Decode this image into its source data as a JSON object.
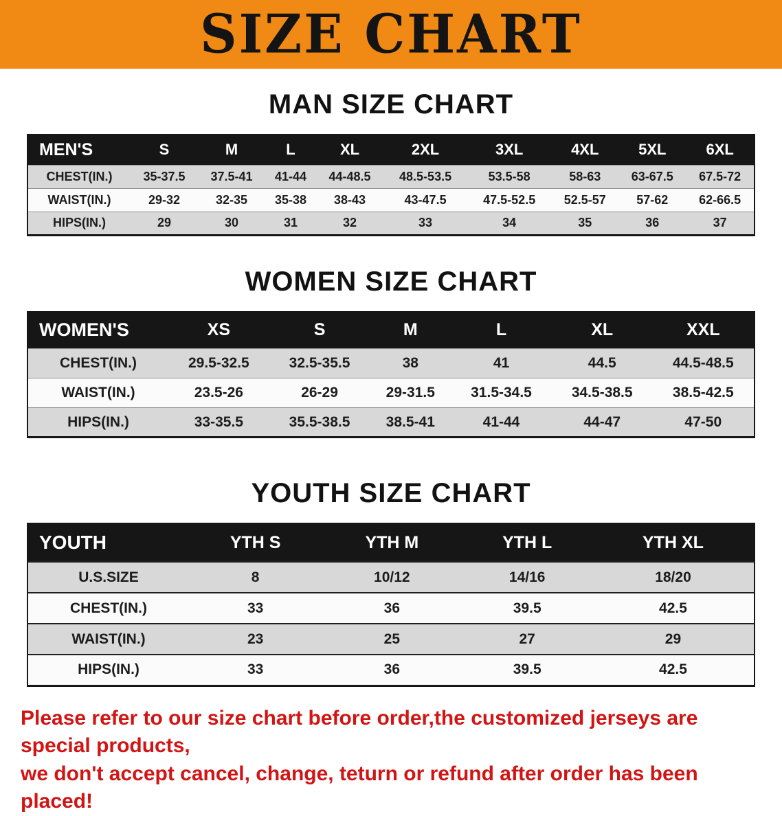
{
  "colors": {
    "banner_bg": "#f18a15",
    "table_header_bg": "#161616",
    "row_stripe": "#d8d8d8",
    "accent_red": "#d11515"
  },
  "banner": {
    "title": "SIZE CHART"
  },
  "sections": [
    {
      "heading": "MAN SIZE CHART",
      "table": {
        "header": [
          "MEN'S",
          "S",
          "M",
          "L",
          "XL",
          "2XL",
          "3XL",
          "4XL",
          "5XL",
          "6XL"
        ],
        "rows": [
          [
            "CHEST(IN.)",
            "35-37.5",
            "37.5-41",
            "41-44",
            "44-48.5",
            "48.5-53.5",
            "53.5-58",
            "58-63",
            "63-67.5",
            "67.5-72"
          ],
          [
            "WAIST(IN.)",
            "29-32",
            "32-35",
            "35-38",
            "38-43",
            "43-47.5",
            "47.5-52.5",
            "52.5-57",
            "57-62",
            "62-66.5"
          ],
          [
            "HIPS(IN.)",
            "29",
            "30",
            "31",
            "32",
            "33",
            "34",
            "35",
            "36",
            "37"
          ]
        ]
      }
    },
    {
      "heading": "WOMEN SIZE CHART",
      "table": {
        "header": [
          "WOMEN'S",
          "XS",
          "S",
          "M",
          "L",
          "XL",
          "XXL"
        ],
        "rows": [
          [
            "CHEST(IN.)",
            "29.5-32.5",
            "32.5-35.5",
            "38",
            "41",
            "44.5",
            "44.5-48.5"
          ],
          [
            "WAIST(IN.)",
            "23.5-26",
            "26-29",
            "29-31.5",
            "31.5-34.5",
            "34.5-38.5",
            "38.5-42.5"
          ],
          [
            "HIPS(IN.)",
            "33-35.5",
            "35.5-38.5",
            "38.5-41",
            "41-44",
            "44-47",
            "47-50"
          ]
        ]
      }
    },
    {
      "heading": "YOUTH SIZE CHART",
      "table": {
        "header": [
          "YOUTH",
          "YTH S",
          "YTH M",
          "YTH L",
          "YTH XL"
        ],
        "rows": [
          [
            "U.S.SIZE",
            "8",
            "10/12",
            "14/16",
            "18/20"
          ],
          [
            "CHEST(IN.)",
            "33",
            "36",
            "39.5",
            "42.5"
          ],
          [
            "WAIST(IN.)",
            "23",
            "25",
            "27",
            "29"
          ],
          [
            "HIPS(IN.)",
            "33",
            "36",
            "39.5",
            "42.5"
          ]
        ]
      }
    }
  ],
  "disclaimer": {
    "lines": [
      "Please refer to our size chart before order,the customized jerseys are special products,",
      "we don't accept cancel, change, teturn or refund after order has been placed!"
    ]
  }
}
